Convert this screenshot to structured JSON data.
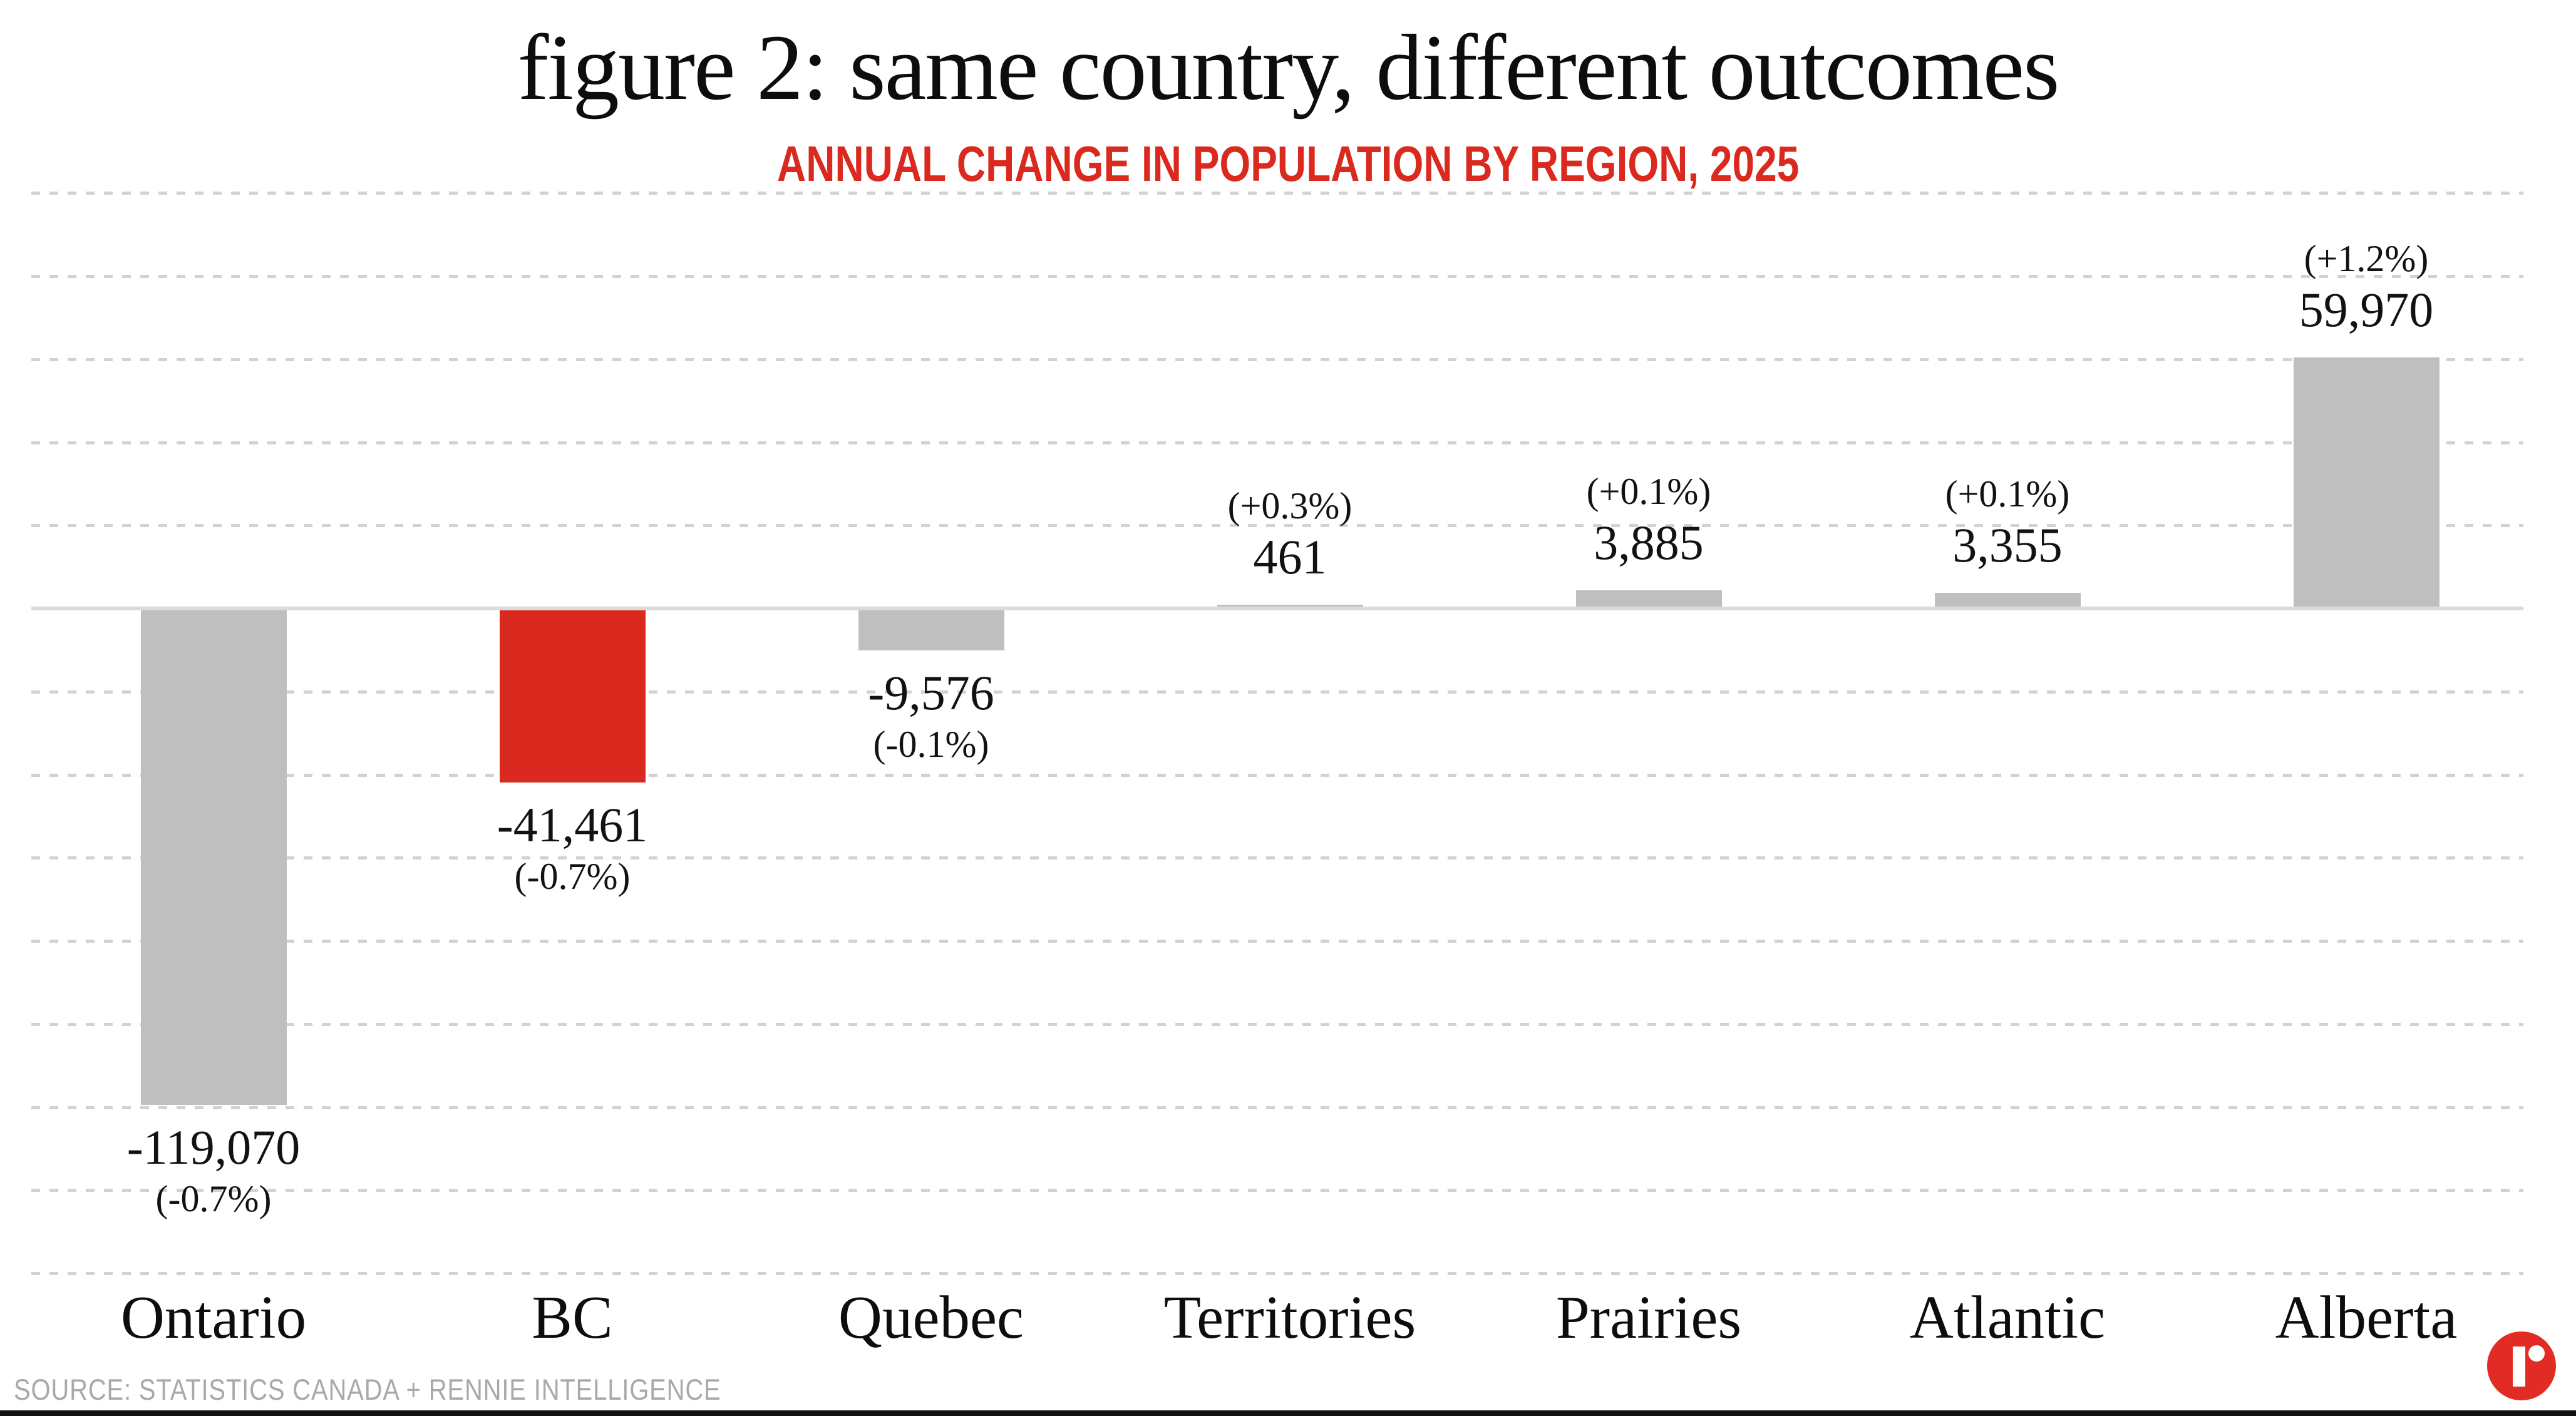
{
  "header": {
    "title": "figure 2: same country, different outcomes",
    "subtitle": "ANNUAL CHANGE IN POPULATION BY REGION, 2025"
  },
  "footer": {
    "source": "SOURCE: STATISTICS CANADA + RENNIE INTELLIGENCE",
    "logo_icon": "rennie-logo"
  },
  "colors": {
    "bar_default": "#bfbfbf",
    "bar_highlight": "#da291e",
    "subtitle": "#da291e",
    "gridline": "#d2d2d2",
    "zero_line": "#dbdbdb",
    "text": "#0d0d0d",
    "source_text": "#a9a9a9",
    "logo_red": "#e32b25",
    "bottom_border": "#111111"
  },
  "chart_data": {
    "type": "bar",
    "title": "figure 2: same country, different outcomes",
    "subtitle": "ANNUAL CHANGE IN POPULATION BY REGION, 2025",
    "categories": [
      "Ontario",
      "BC",
      "Quebec",
      "Territories",
      "Prairies",
      "Atlantic",
      "Alberta"
    ],
    "values": [
      -119070,
      -41461,
      -9576,
      461,
      3885,
      3355,
      59970
    ],
    "value_labels": [
      "-119,070",
      "-41,461",
      "-9,576",
      "461",
      "3,885",
      "3,355",
      "59,970"
    ],
    "pct_labels": [
      "(-0.7%)",
      "(-0.7%)",
      "(-0.1%)",
      "(+0.3%)",
      "(+0.1%)",
      "(+0.1%)",
      "(+1.2%)"
    ],
    "highlight_index": 1,
    "xlabel": "",
    "ylabel": "",
    "ylim": [
      -160000,
      100000
    ],
    "gridline_step": 20000,
    "grid": "horizontal-dashed, solid zero baseline, no y-axis tick labels",
    "legend_position": "none"
  }
}
